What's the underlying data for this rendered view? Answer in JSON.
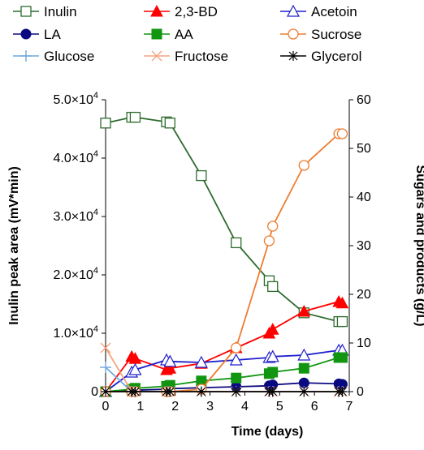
{
  "chart_data": {
    "type": "line",
    "xlabel": "Time (days)",
    "ylabel_left": "Inulin peak area (mV*min)",
    "ylabel_right": "Sugars and products (g/L)",
    "xlim": [
      0,
      7
    ],
    "ylim_left": [
      0,
      50000
    ],
    "ylim_right": [
      0,
      60
    ],
    "x_ticks": [
      {
        "value": 0,
        "label": "0"
      },
      {
        "value": 1,
        "label": "1"
      },
      {
        "value": 2,
        "label": "2"
      },
      {
        "value": 3,
        "label": "3"
      },
      {
        "value": 4,
        "label": "4"
      },
      {
        "value": 5,
        "label": "5"
      },
      {
        "value": 6,
        "label": "6"
      },
      {
        "value": 7,
        "label": "7"
      }
    ],
    "y_left_ticks": [
      {
        "value": 0,
        "mantissa": "0",
        "exponent": ""
      },
      {
        "value": 10000,
        "mantissa": "1.0×10",
        "exponent": "4"
      },
      {
        "value": 20000,
        "mantissa": "2.0×10",
        "exponent": "4"
      },
      {
        "value": 30000,
        "mantissa": "3.0×10",
        "exponent": "4"
      },
      {
        "value": 40000,
        "mantissa": "4.0×10",
        "exponent": "4"
      },
      {
        "value": 50000,
        "mantissa": "5.0×10",
        "exponent": "4"
      }
    ],
    "y_right_ticks": [
      {
        "value": 0,
        "label": "0"
      },
      {
        "value": 10,
        "label": "10"
      },
      {
        "value": 20,
        "label": "20"
      },
      {
        "value": 30,
        "label": "30"
      },
      {
        "value": 40,
        "label": "40"
      },
      {
        "value": 50,
        "label": "50"
      },
      {
        "value": 60,
        "label": "60"
      }
    ],
    "legend_position": "top",
    "grid": false,
    "series": [
      {
        "name": "Inulin",
        "axis": "left",
        "color": "#2e6b2e",
        "marker": "open-square",
        "x": [
          0,
          0.75,
          0.85,
          1.75,
          1.85,
          2.75,
          3.75,
          4.7,
          4.8,
          5.7,
          6.7,
          6.8
        ],
        "y": [
          46000,
          47000,
          47000,
          46200,
          46000,
          37000,
          25500,
          19000,
          18000,
          13500,
          12000,
          12000
        ]
      },
      {
        "name": "2,3-BD",
        "axis": "right",
        "color": "#ff0000",
        "marker": "filled-triangle",
        "x": [
          0,
          0.75,
          0.85,
          1.75,
          1.85,
          2.75,
          3.75,
          4.7,
          4.8,
          5.7,
          6.7,
          6.8
        ],
        "y": [
          0,
          7.2,
          6.8,
          4.5,
          4.8,
          5.8,
          9.0,
          12.0,
          12.8,
          16.5,
          18.5,
          18.2
        ]
      },
      {
        "name": "Acetoin",
        "axis": "right",
        "color": "#1f1fcc",
        "marker": "open-triangle",
        "x": [
          0,
          0.75,
          0.85,
          1.75,
          1.85,
          2.75,
          3.75,
          4.7,
          4.8,
          5.7,
          6.7,
          6.8
        ],
        "y": [
          0,
          4.0,
          4.5,
          6.5,
          6.2,
          6.0,
          6.5,
          7.0,
          7.2,
          7.5,
          8.5,
          8.5
        ]
      },
      {
        "name": "LA",
        "axis": "right",
        "color": "#0a0a80",
        "marker": "filled-circle",
        "x": [
          0,
          0.75,
          0.85,
          1.75,
          1.85,
          2.75,
          3.75,
          4.7,
          4.8,
          5.7,
          6.7,
          6.8
        ],
        "y": [
          0,
          0.2,
          0.3,
          0.5,
          0.6,
          0.8,
          1.0,
          1.2,
          1.4,
          1.8,
          1.6,
          1.5
        ]
      },
      {
        "name": "AA",
        "axis": "right",
        "color": "#129612",
        "marker": "filled-square",
        "x": [
          0,
          0.75,
          0.85,
          1.75,
          1.85,
          2.75,
          3.75,
          4.7,
          4.8,
          5.7,
          6.7,
          6.8
        ],
        "y": [
          0,
          0.5,
          0.7,
          1.1,
          1.3,
          2.2,
          2.8,
          3.7,
          4.0,
          4.8,
          7.0,
          7.0
        ]
      },
      {
        "name": "Sucrose",
        "axis": "right",
        "color": "#ed7d31",
        "marker": "open-circle",
        "x": [
          0,
          0.75,
          0.85,
          1.75,
          1.85,
          2.75,
          3.75,
          4.7,
          4.8,
          5.7,
          6.7,
          6.8
        ],
        "y": [
          0,
          0,
          0,
          0,
          0,
          0.5,
          9.0,
          31.0,
          34.0,
          46.5,
          53.0,
          53.0
        ]
      },
      {
        "name": "Glucose",
        "axis": "right",
        "color": "#6fa8dc",
        "marker": "plus",
        "x": [
          0,
          0.75,
          0.85,
          1.75,
          1.85,
          2.75,
          3.75,
          4.7,
          4.8,
          5.7,
          6.7,
          6.8
        ],
        "y": [
          5.0,
          0,
          0,
          0,
          0,
          0,
          0,
          0,
          0,
          0,
          0,
          0
        ]
      },
      {
        "name": "Fructose",
        "axis": "right",
        "color": "#f4a582",
        "marker": "cross",
        "x": [
          0,
          0.75,
          0.85,
          1.75,
          1.85,
          2.75,
          3.75,
          4.7,
          4.8,
          5.7,
          6.7,
          6.8
        ],
        "y": [
          9.0,
          0,
          0,
          0,
          0,
          0,
          0,
          0,
          0,
          0,
          0,
          0
        ]
      },
      {
        "name": "Glycerol",
        "axis": "right",
        "color": "#000000",
        "marker": "asterisk",
        "x": [
          0,
          0.75,
          0.85,
          1.75,
          1.85,
          2.75,
          3.75,
          4.7,
          4.8,
          5.7,
          6.7,
          6.8
        ],
        "y": [
          0,
          0,
          0,
          0,
          0,
          0,
          0,
          0,
          0,
          0,
          0,
          0
        ]
      }
    ]
  }
}
